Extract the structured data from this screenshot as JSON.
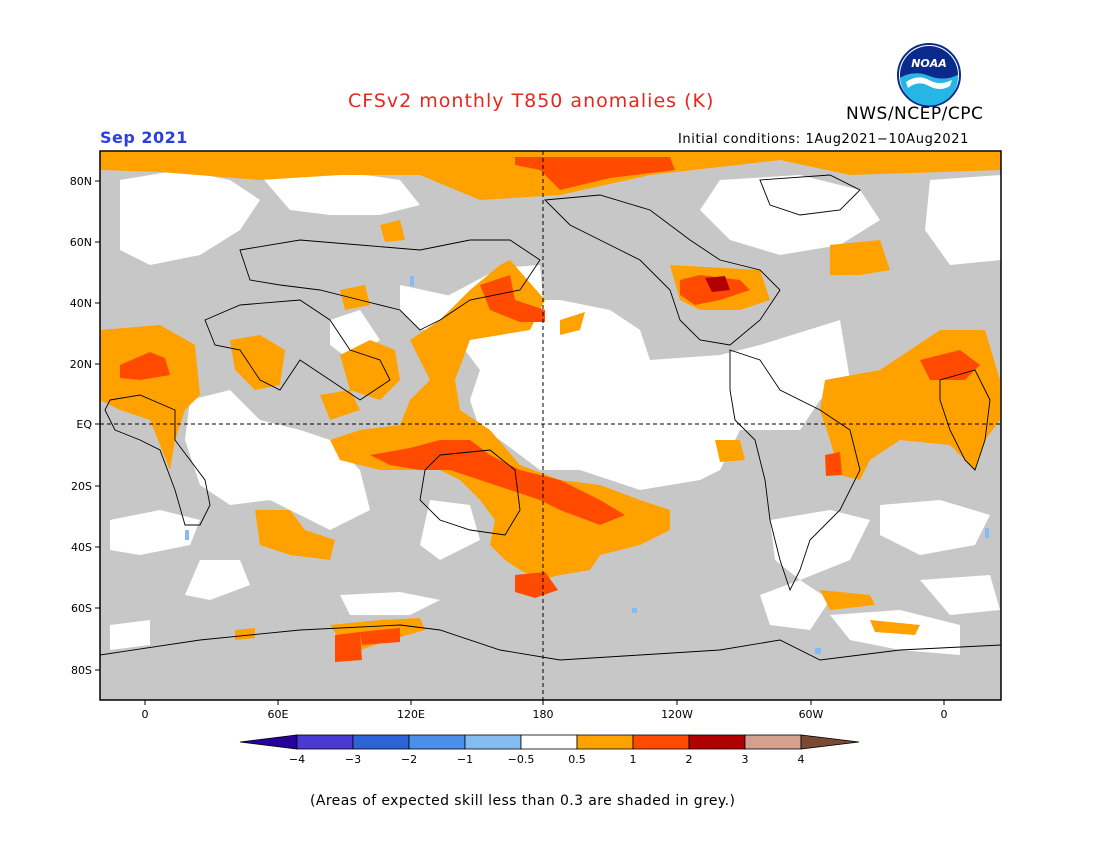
{
  "title": "CFSv2 monthly T850 anomalies (K)",
  "agency": "NWS/NCEP/CPC",
  "logo_text": "NOAA",
  "valid_month": "Sep 2021",
  "initial_conditions": "Initial conditions: 1Aug2021−10Aug2021",
  "footnote": "(Areas of expected skill less than 0.3 are shaded in grey.)",
  "map": {
    "lat_labels": [
      "80N",
      "60N",
      "40N",
      "20N",
      "EQ",
      "20S",
      "40S",
      "60S",
      "80S"
    ],
    "lon_labels": [
      "0",
      "60E",
      "120E",
      "180",
      "120W",
      "60W",
      "0"
    ]
  },
  "colorbar": {
    "ticks": [
      "−4",
      "−3",
      "−2",
      "−1",
      "−0.5",
      "0.5",
      "1",
      "2",
      "3",
      "4"
    ],
    "colors": [
      "#27009e",
      "#4b3ad1",
      "#2d63d8",
      "#4a8fec",
      "#84bcf2",
      "#ffffff",
      "#ffa200",
      "#ff4a00",
      "#b00000",
      "#d4a090",
      "#7a4a32"
    ]
  },
  "fill_colors": {
    "grey": "#c7c7c7",
    "orange": "#ffa200",
    "red": "#ff4a00",
    "darkred": "#b00000",
    "lightblue": "#84bcf2"
  }
}
